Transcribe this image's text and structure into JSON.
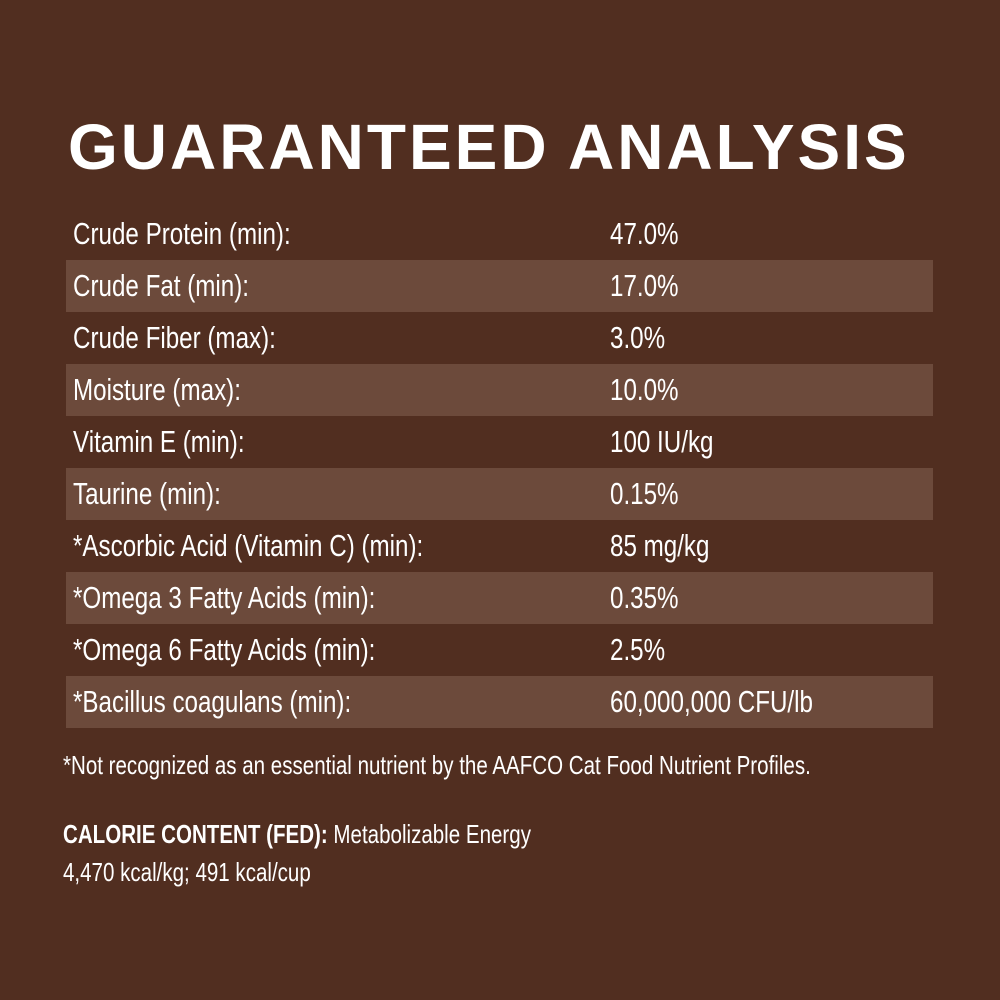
{
  "title": "GUARANTEED ANALYSIS",
  "rows": [
    {
      "label": "Crude Protein (min):",
      "value": "47.0%"
    },
    {
      "label": "Crude Fat (min):",
      "value": "17.0%"
    },
    {
      "label": "Crude Fiber (max):",
      "value": "3.0%"
    },
    {
      "label": "Moisture (max):",
      "value": "10.0%"
    },
    {
      "label": "Vitamin E (min):",
      "value": "100 IU/kg"
    },
    {
      "label": "Taurine (min):",
      "value": "0.15%"
    },
    {
      "label": "*Ascorbic Acid (Vitamin C) (min):",
      "value": "85 mg/kg"
    },
    {
      "label": "*Omega 3 Fatty Acids (min):",
      "value": "0.35%"
    },
    {
      "label": "*Omega 6 Fatty Acids (min):",
      "value": "2.5%"
    },
    {
      "label": "*Bacillus coagulans (min):",
      "value": "60,000,000 CFU/lb"
    }
  ],
  "footnote": "*Not recognized as an essential nutrient by the AAFCO Cat Food Nutrient Profiles.",
  "calorie": {
    "heading": "CALORIE CONTENT (FED):",
    "text": " Metabolizable Energy",
    "values": "4,470 kcal/kg; 491 kcal/cup"
  },
  "colors": {
    "background": "#512e20",
    "stripe": "#6c4a3b",
    "text": "#ffffff"
  }
}
